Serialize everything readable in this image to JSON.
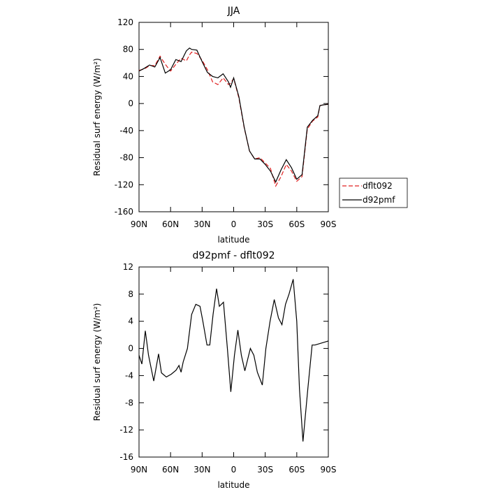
{
  "chart_data": [
    {
      "type": "line",
      "title": "JJA",
      "xlabel": "latitude",
      "ylabel": "Residual surf energy (W/m²)",
      "x": [
        90,
        85,
        80,
        75,
        70,
        65,
        60,
        55,
        50,
        45,
        42,
        40,
        35,
        30,
        25,
        20,
        15,
        10,
        5,
        3,
        0,
        -5,
        -10,
        -15,
        -20,
        -25,
        -30,
        -35,
        -40,
        -45,
        -50,
        -55,
        -60,
        -65,
        -70,
        -75,
        -80,
        -82,
        -85,
        -90
      ],
      "series": [
        {
          "name": "dflt092",
          "color": "#e02020",
          "dash": true,
          "values": [
            49,
            51,
            56,
            56,
            70,
            58,
            48,
            58,
            67,
            63,
            72,
            76,
            74,
            64,
            50,
            32,
            28,
            38,
            28,
            30,
            37,
            8,
            -36,
            -70,
            -82,
            -80,
            -88,
            -96,
            -122,
            -108,
            -90,
            -100,
            -115,
            -108,
            -38,
            -26,
            -20,
            -3,
            -2,
            -1
          ]
        },
        {
          "name": "d92pmf",
          "color": "#000000",
          "dash": false,
          "values": [
            48,
            52,
            57,
            54,
            68,
            45,
            50,
            65,
            62,
            78,
            82,
            80,
            79,
            62,
            46,
            40,
            38,
            44,
            32,
            24,
            38,
            10,
            -35,
            -70,
            -82,
            -82,
            -90,
            -100,
            -116,
            -98,
            -83,
            -95,
            -112,
            -105,
            -35,
            -25,
            -18,
            -3,
            -2,
            -1
          ]
        }
      ],
      "xlim": [
        90,
        -90
      ],
      "xticks": [
        {
          "value": 90,
          "label": "90N"
        },
        {
          "value": 60,
          "label": "60N"
        },
        {
          "value": 30,
          "label": "30N"
        },
        0,
        {
          "value": -30,
          "label": "30S"
        },
        {
          "value": -60,
          "label": "60S"
        },
        {
          "value": -90,
          "label": "90S"
        }
      ],
      "ylim": [
        -160,
        120
      ],
      "yticks": [
        -160,
        -120,
        -80,
        -40,
        0,
        40,
        80,
        120
      ],
      "legend": "right"
    },
    {
      "type": "line",
      "title": "d92pmf - dflt092",
      "xlabel": "latitude",
      "ylabel": "Residual surf energy (W/m²)",
      "x": [
        90,
        87.3,
        84,
        81,
        76,
        71.4,
        68.7,
        64,
        59.4,
        54.8,
        52,
        50,
        48,
        44,
        40,
        36,
        32,
        29.3,
        25.4,
        22.7,
        19.6,
        16.3,
        13.6,
        9.7,
        6,
        2.7,
        -0.7,
        -4,
        -7.3,
        -10.6,
        -15.9,
        -19.2,
        -22.5,
        -27.2,
        -30.6,
        -34.6,
        -38.6,
        -42.6,
        -45.9,
        -49.3,
        -52.6,
        -56.6,
        -60,
        -62.6,
        -65.9,
        -70.5,
        -74.6,
        -77.3,
        -90
      ],
      "series": [
        {
          "color": "#000000",
          "dash": false,
          "values": [
            -1,
            -2.3,
            2.6,
            -1,
            -4.8,
            -0.8,
            -3.6,
            -4.2,
            -3.8,
            -3.2,
            -2.5,
            -3.5,
            -2,
            0,
            5,
            6.5,
            6.2,
            4,
            0.5,
            0.5,
            5,
            8.8,
            6.2,
            6.8,
            0,
            -6.4,
            -1,
            2.7,
            -1,
            -3.3,
            0,
            -1,
            -3.5,
            -5.4,
            0,
            4,
            7.2,
            4.5,
            3.5,
            6.5,
            8,
            10.2,
            4,
            -6,
            -13.7,
            -6,
            0.5,
            0.5,
            1.1
          ]
        }
      ],
      "xlim": [
        90,
        -90
      ],
      "xticks": [
        {
          "value": 90,
          "label": "90N"
        },
        {
          "value": 60,
          "label": "60N"
        },
        {
          "value": 30,
          "label": "30N"
        },
        0,
        {
          "value": -30,
          "label": "30S"
        },
        {
          "value": -60,
          "label": "60S"
        },
        {
          "value": -90,
          "label": "90S"
        }
      ],
      "ylim": [
        -16,
        12
      ],
      "yticks": [
        -16,
        -12,
        -8,
        -4,
        0,
        4,
        8,
        12
      ]
    }
  ]
}
